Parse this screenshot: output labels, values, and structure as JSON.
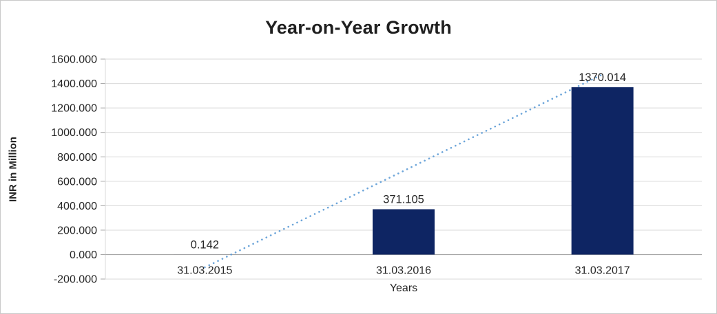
{
  "chart_data": {
    "type": "bar",
    "title": "Year-on-Year Growth",
    "xlabel": "Years",
    "ylabel": "INR in Million",
    "categories": [
      "31.03.2015",
      "31.03.2016",
      "31.03.2017"
    ],
    "values": [
      0.142,
      371.105,
      1370.014
    ],
    "data_labels": [
      "0.142",
      "371.105",
      "1370.014"
    ],
    "ylim": [
      -200,
      1600
    ],
    "ytick_step": 200,
    "ytick_labels": [
      "-200.000",
      "0.000",
      "200.000",
      "400.000",
      "600.000",
      "800.000",
      "1000.000",
      "1200.000",
      "1400.000",
      "1600.000"
    ],
    "grid": true,
    "legend": "none",
    "bar_color": "#0e2563",
    "grid_color": "#d9d9d9",
    "axis_line_color": "#a6a6a6",
    "text_color": "#262626",
    "trendline": {
      "style": "dotted",
      "color": "#5B9BD5",
      "endpoint_values": [
        -104.5,
        1474.2
      ]
    }
  }
}
